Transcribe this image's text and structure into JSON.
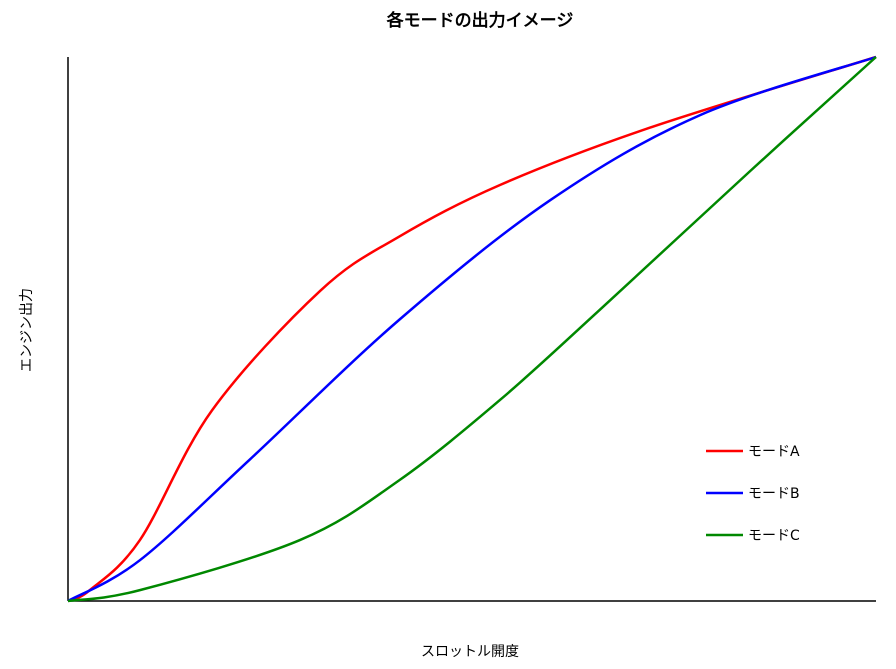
{
  "chart_data": {
    "type": "line",
    "title": "各モードの出力イメージ",
    "xlabel": "スロットル開度",
    "ylabel": "エンジン出力",
    "xlim": [
      0,
      100
    ],
    "ylim": [
      0,
      100
    ],
    "grid": false,
    "legend_placement": "bottom-right",
    "series": [
      {
        "name": "モードA",
        "color": "#ff0000",
        "x": [
          0,
          2.7,
          8.9,
          17.8,
          31.2,
          41,
          53.5,
          72,
          100
        ],
        "y": [
          0,
          2,
          11.2,
          35,
          57,
          67,
          76.5,
          87,
          100
        ]
      },
      {
        "name": "モードB",
        "color": "#0000ff",
        "x": [
          0,
          8.9,
          22.5,
          41,
          59.7,
          78.2,
          100
        ],
        "y": [
          0,
          7.5,
          26,
          51.7,
          73.7,
          89.3,
          100
        ]
      },
      {
        "name": "モードC",
        "color": "#008800",
        "x": [
          0,
          8.9,
          28.7,
          41,
          53.5,
          65.8,
          84.4,
          100
        ],
        "y": [
          0,
          2,
          11.2,
          22.2,
          37,
          53.5,
          79,
          100
        ]
      }
    ]
  }
}
